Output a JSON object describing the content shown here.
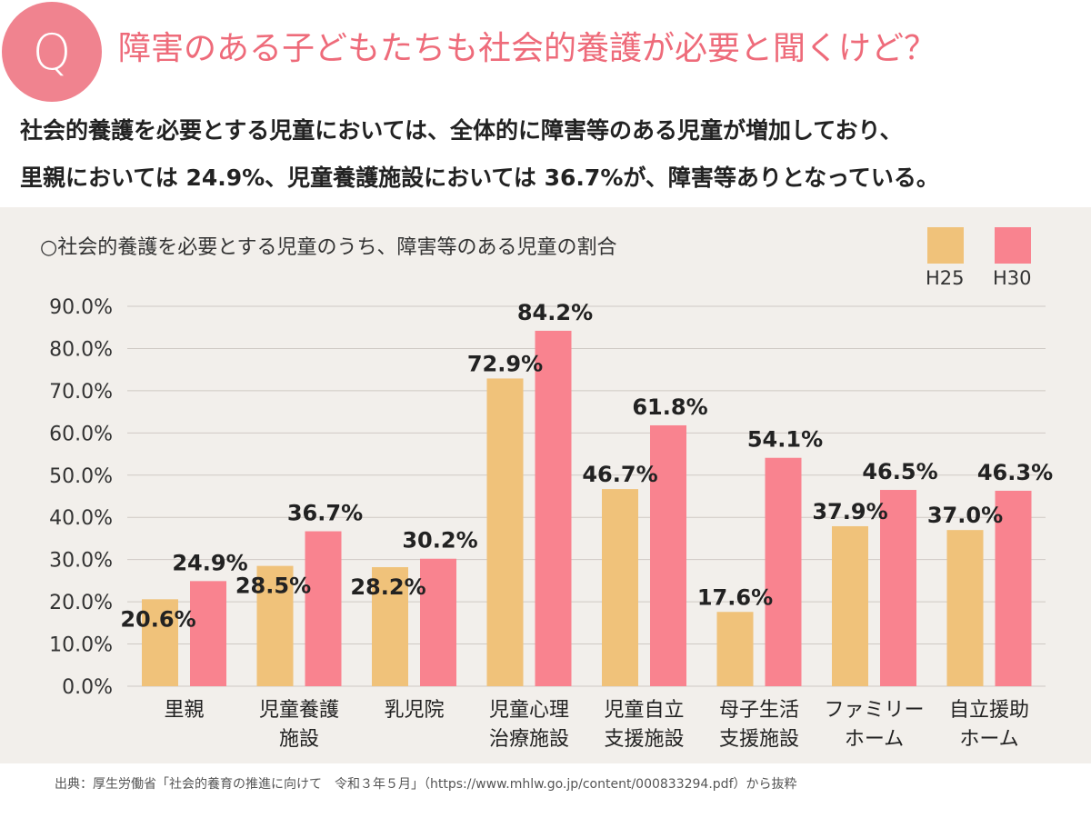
{
  "header": {
    "badge": "Q",
    "question": "障害のある子どもたちも社会的養護が必要と聞くけど？"
  },
  "summary": {
    "line1": "社会的養護を必要とする児童においては、全体的に障害等のある児童が増加しており、",
    "line2": "里親においては 24.9%、児童養護施設においては 36.7%が、障害等ありとなっている。"
  },
  "colors": {
    "accent": "#f0838f",
    "h25": "#f0c27a",
    "h30": "#f9838f",
    "panel": "#f2efeb"
  },
  "chart_data": {
    "type": "bar",
    "title": "○社会的養護を必要とする児童のうち、障害等のある児童の割合",
    "categories": [
      [
        "里親"
      ],
      [
        "児童養護",
        "施設"
      ],
      [
        "乳児院"
      ],
      [
        "児童心理",
        "治療施設"
      ],
      [
        "児童自立",
        "支援施設"
      ],
      [
        "母子生活",
        "支援施設"
      ],
      [
        "ファミリー",
        "ホーム"
      ],
      [
        "自立援助",
        "ホーム"
      ]
    ],
    "series": [
      {
        "name": "H25",
        "values": [
          20.6,
          28.5,
          28.2,
          72.9,
          46.7,
          17.6,
          37.9,
          37.0
        ],
        "labels": [
          "20.6%",
          "28.5%",
          "28.2%",
          "72.9%",
          "46.7%",
          "17.6%",
          "37.9%",
          "37.0%"
        ]
      },
      {
        "name": "H30",
        "values": [
          24.9,
          36.7,
          30.2,
          84.2,
          61.8,
          54.1,
          46.5,
          46.3
        ],
        "labels": [
          "24.9%",
          "36.7%",
          "30.2%",
          "84.2%",
          "61.8%",
          "54.1%",
          "46.5%",
          "46.3%"
        ]
      }
    ],
    "yticks": [
      "0.0%",
      "10.0%",
      "20.0%",
      "30.0%",
      "40.0%",
      "50.0%",
      "60.0%",
      "70.0%",
      "80.0%",
      "90.0%"
    ],
    "ylim": [
      0,
      90
    ],
    "grid": true,
    "legend": "top-right"
  },
  "source": "出典：厚生労働省「社会的養育の推進に向けて　令和３年５月」（https://www.mhlw.go.jp/content/000833294.pdf）から抜粋"
}
